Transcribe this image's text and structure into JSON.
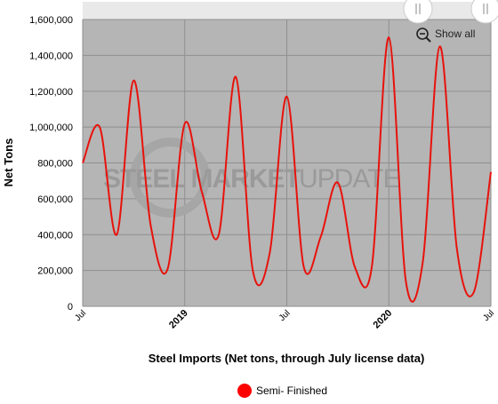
{
  "watermark": {
    "bold": "STEEL MARKET",
    "light": "UPDATE"
  },
  "toolbar": {
    "show_all_label": "Show all",
    "zoom_icon": "zoom-out-icon"
  },
  "colors": {
    "plot_bg": "#b5b5b5",
    "line": "#e8120c",
    "legend_marker": "#ff0000",
    "navigator_bg": "#e9e9e9"
  },
  "chart_data": {
    "type": "line",
    "title": "",
    "xlabel": "Steel Imports (Net tons, through July license data)",
    "ylabel": "Net Tons",
    "ylim": [
      0,
      1600000
    ],
    "yticks": [
      "0",
      "200,000",
      "400,000",
      "600,000",
      "800,000",
      "1,000,000",
      "1,200,000",
      "1,400,000",
      "1,600,000"
    ],
    "ytick_values": [
      0,
      200000,
      400000,
      600000,
      800000,
      1000000,
      1200000,
      1400000,
      1600000
    ],
    "xticks": [
      {
        "label": "Jul",
        "major": false
      },
      {
        "label": "2019",
        "major": true
      },
      {
        "label": "Jul",
        "major": false
      },
      {
        "label": "2020",
        "major": true
      },
      {
        "label": "Jul",
        "major": false
      }
    ],
    "grid": true,
    "legend_position": "bottom-center",
    "series": [
      {
        "name": "Semi- Finished",
        "x": [
          "2018-07",
          "2018-08",
          "2018-09",
          "2018-10",
          "2018-11",
          "2018-12",
          "2019-01",
          "2019-02",
          "2019-03",
          "2019-04",
          "2019-05",
          "2019-06",
          "2019-07",
          "2019-08",
          "2019-09",
          "2019-10",
          "2019-11",
          "2019-12",
          "2020-01",
          "2020-02",
          "2020-03",
          "2020-04",
          "2020-05",
          "2020-06",
          "2020-07"
        ],
        "y": [
          800000,
          1000000,
          400000,
          1260000,
          450000,
          210000,
          1020000,
          640000,
          400000,
          1280000,
          200000,
          300000,
          1170000,
          220000,
          390000,
          690000,
          220000,
          220000,
          1500000,
          140000,
          250000,
          1450000,
          320000,
          80000,
          750000
        ]
      }
    ]
  }
}
